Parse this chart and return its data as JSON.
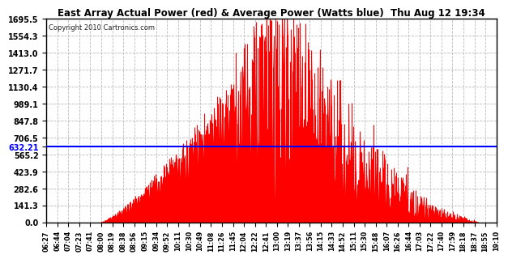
{
  "title": "East Array Actual Power (red) & Average Power (Watts blue)  Thu Aug 12 19:34",
  "copyright": "Copyright 2010 Cartronics.com",
  "average_power": 632.21,
  "y_max": 1695.5,
  "y_min": 0.0,
  "y_ticks": [
    0.0,
    141.3,
    282.6,
    423.9,
    565.2,
    706.5,
    847.8,
    989.1,
    1130.4,
    1271.7,
    1413.0,
    1554.3,
    1695.5
  ],
  "x_labels": [
    "06:27",
    "06:44",
    "07:04",
    "07:23",
    "07:41",
    "08:00",
    "08:19",
    "08:38",
    "08:56",
    "09:15",
    "09:34",
    "09:52",
    "10:11",
    "10:30",
    "10:49",
    "11:08",
    "11:26",
    "11:45",
    "12:04",
    "12:22",
    "12:41",
    "13:00",
    "13:19",
    "13:37",
    "13:56",
    "14:15",
    "14:33",
    "14:52",
    "15:11",
    "15:30",
    "15:48",
    "16:07",
    "16:26",
    "16:44",
    "17:03",
    "17:22",
    "17:40",
    "17:59",
    "18:18",
    "18:37",
    "18:55",
    "19:10"
  ],
  "background_color": "#ffffff",
  "plot_bg_color": "#ffffff",
  "grid_color": "#bbbbbb",
  "fill_color": "#ff0000",
  "line_color": "#0000ff",
  "avg_label_color": "#0000ff",
  "title_color": "#000000",
  "border_color": "#000000"
}
